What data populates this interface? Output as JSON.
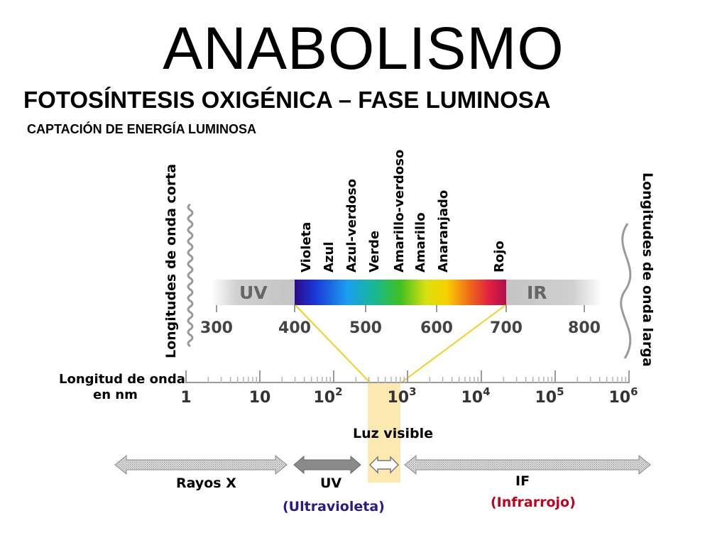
{
  "header": {
    "title": "ANABOLISMO",
    "subtitle": "FOTOSÍNTESIS OXIGÉNICA – FASE LUMINOSA",
    "section": "CAPTACIÓN DE ENERGÍA LUMINOSA"
  },
  "spectrum": {
    "colors": [
      "Violeta",
      "Azul",
      "Azul-verdoso",
      "Verde",
      "Amarillo-verdoso",
      "Amarillo",
      "Anaranjado",
      "Rojo"
    ],
    "uv_label": "UV",
    "ir_label": "IR",
    "ticks": [
      "300",
      "400",
      "500",
      "600",
      "700",
      "800"
    ],
    "short_wave_label": "Longitudes de onda corta",
    "long_wave_label": "Longitudes de onda larga"
  },
  "scale": {
    "axis_label_line1": "Longitud de onda",
    "axis_label_line2": "en nm",
    "ticks": [
      {
        "base": "1",
        "exp": ""
      },
      {
        "base": "10",
        "exp": ""
      },
      {
        "base": "10",
        "exp": "2"
      },
      {
        "base": "10",
        "exp": "3"
      },
      {
        "base": "10",
        "exp": "4"
      },
      {
        "base": "10",
        "exp": "5"
      },
      {
        "base": "10",
        "exp": "6"
      }
    ]
  },
  "regions": {
    "visible_label": "Luz visible",
    "xray_label": "Rayos X",
    "uv_label": "UV",
    "uv_sub": "(Ultravioleta)",
    "ir_label": "IF",
    "ir_sub": "(Infrarrojo)",
    "uv_sub_color": "#2a1a8c",
    "ir_sub_color": "#c0001e"
  }
}
